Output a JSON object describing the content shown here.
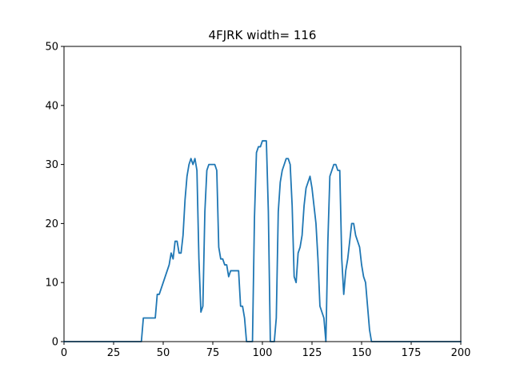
{
  "chart_data": {
    "type": "line",
    "title": "4FJRK width= 116",
    "xlabel": "",
    "ylabel": "",
    "xlim": [
      0,
      200
    ],
    "ylim": [
      0,
      50
    ],
    "xticks": [
      0,
      25,
      50,
      75,
      100,
      125,
      150,
      175,
      200
    ],
    "yticks": [
      0,
      10,
      20,
      30,
      40,
      50
    ],
    "grid": false,
    "legend": "none",
    "series": [
      {
        "color": "#1f77b4",
        "x": [
          0,
          39,
          40,
          46,
          47,
          48,
          53,
          54,
          55,
          56,
          57,
          58,
          59,
          60,
          61,
          62,
          63,
          64,
          65,
          66,
          67,
          68,
          69,
          70,
          71,
          72,
          73,
          74,
          75,
          76,
          77,
          78,
          79,
          80,
          81,
          82,
          83,
          84,
          85,
          86,
          87,
          88,
          89,
          90,
          91,
          92,
          93,
          94,
          95,
          96,
          97,
          98,
          99,
          100,
          101,
          102,
          103,
          104,
          105,
          106,
          107,
          108,
          109,
          110,
          111,
          112,
          113,
          114,
          115,
          116,
          117,
          118,
          119,
          120,
          121,
          122,
          123,
          124,
          125,
          126,
          127,
          128,
          129,
          130,
          131,
          132,
          133,
          134,
          135,
          136,
          137,
          138,
          139,
          140,
          141,
          142,
          143,
          144,
          145,
          146,
          147,
          148,
          149,
          150,
          151,
          152,
          153,
          154,
          155,
          156,
          200
        ],
        "y": [
          0,
          0,
          4,
          4,
          8,
          8,
          13,
          15,
          14,
          17,
          17,
          15,
          15,
          18,
          24,
          28,
          30,
          31,
          30,
          31,
          29,
          14,
          5,
          6,
          22,
          29,
          30,
          30,
          30,
          30,
          29,
          16,
          14,
          14,
          13,
          13,
          11,
          12,
          12,
          12,
          12,
          12,
          6,
          6,
          4,
          0,
          0,
          0,
          0,
          21,
          32,
          33,
          33,
          34,
          34,
          34,
          22,
          0,
          0,
          0,
          4,
          22,
          27,
          29,
          30,
          31,
          31,
          30,
          23,
          11,
          10,
          15,
          16,
          18,
          23,
          26,
          27,
          28,
          26,
          23,
          20,
          14,
          6,
          5,
          4,
          0,
          17,
          28,
          29,
          30,
          30,
          29,
          29,
          14,
          8,
          12,
          14,
          17,
          20,
          20,
          18,
          17,
          16,
          13,
          11,
          10,
          6,
          2,
          0,
          0,
          0
        ]
      }
    ]
  }
}
